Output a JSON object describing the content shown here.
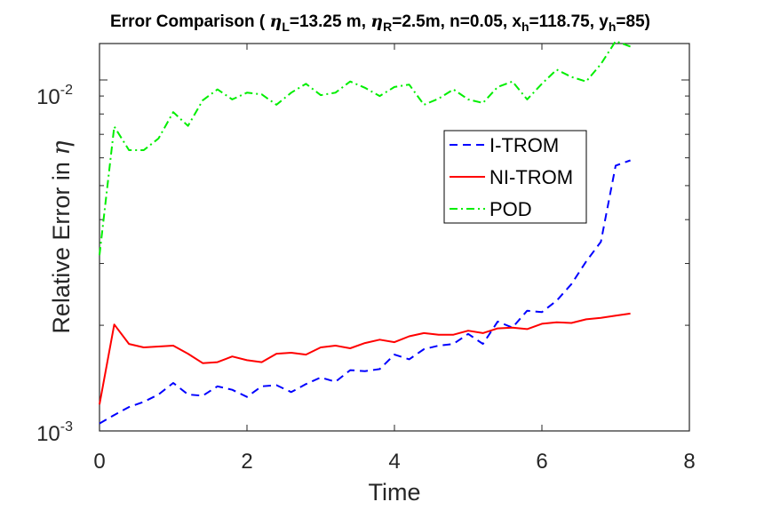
{
  "chart_data": {
    "type": "line",
    "title": {
      "prefix": "Error Comparison ( ",
      "etaL_sub": "L",
      "etaL_val": "=13.25 m, ",
      "etaR_sub": "R",
      "etaR_val": "=2.5m, n=0.05, x",
      "xh_sub": "h",
      "xh_val": "=118.75, y",
      "yh_sub": "h",
      "yh_val": "=85)",
      "eta_symbol": "η"
    },
    "xlabel": "Time",
    "ylabel": "Relative Error in",
    "ylabel_symbol": "η",
    "xlim": [
      0,
      8
    ],
    "ylim": [
      0.001,
      0.0127
    ],
    "yscale": "log",
    "xticks": [
      "0",
      "2",
      "4",
      "6",
      "8"
    ],
    "xtick_values": [
      0,
      2,
      4,
      6,
      8
    ],
    "yticks": [
      {
        "value": 0.01,
        "base": "10",
        "exp": "-2"
      },
      {
        "value": 0.001,
        "base": "10",
        "exp": "-3"
      }
    ],
    "x": [
      0,
      0.2,
      0.4,
      0.6,
      0.8,
      1.0,
      1.2,
      1.4,
      1.6,
      1.8,
      2.0,
      2.2,
      2.4,
      2.6,
      2.8,
      3.0,
      3.2,
      3.4,
      3.6,
      3.8,
      4.0,
      4.2,
      4.4,
      4.6,
      4.8,
      5.0,
      5.2,
      5.4,
      5.6,
      5.8,
      6.0,
      6.2,
      6.4,
      6.6,
      6.8,
      7.0,
      7.2
    ],
    "series": [
      {
        "name": "I-TROM",
        "color": "#0000ff",
        "style": "dashed",
        "values": [
          0.00105,
          0.00111,
          0.00117,
          0.00121,
          0.00127,
          0.00137,
          0.00127,
          0.00126,
          0.00134,
          0.00131,
          0.00125,
          0.00134,
          0.00135,
          0.00129,
          0.00136,
          0.00142,
          0.00138,
          0.00149,
          0.00148,
          0.0015,
          0.00165,
          0.0016,
          0.00171,
          0.00175,
          0.00177,
          0.00189,
          0.00177,
          0.00205,
          0.00197,
          0.0022,
          0.00218,
          0.00235,
          0.00262,
          0.00304,
          0.00346,
          0.0057,
          0.0059
        ]
      },
      {
        "name": "NI-TROM",
        "color": "#ff0000",
        "style": "solid",
        "values": [
          0.00119,
          0.00201,
          0.00177,
          0.00173,
          0.00174,
          0.00175,
          0.00166,
          0.00156,
          0.00157,
          0.00163,
          0.00159,
          0.00157,
          0.00166,
          0.00167,
          0.00165,
          0.00173,
          0.00175,
          0.00172,
          0.00178,
          0.00182,
          0.00179,
          0.00186,
          0.0019,
          0.00188,
          0.00188,
          0.00193,
          0.0019,
          0.00196,
          0.00197,
          0.00195,
          0.00202,
          0.00204,
          0.00203,
          0.00208,
          0.0021,
          0.00213,
          0.00216
        ]
      },
      {
        "name": "POD",
        "color": "#00ee00",
        "style": "dash-dot",
        "values": [
          0.00317,
          0.00737,
          0.00631,
          0.00631,
          0.00681,
          0.0081,
          0.0074,
          0.00875,
          0.0094,
          0.0088,
          0.0092,
          0.0091,
          0.0085,
          0.0092,
          0.00975,
          0.00905,
          0.0092,
          0.0099,
          0.0095,
          0.009,
          0.00955,
          0.0097,
          0.0085,
          0.00885,
          0.0094,
          0.0088,
          0.0086,
          0.00955,
          0.0099,
          0.0088,
          0.00975,
          0.0107,
          0.0102,
          0.0099,
          0.0111,
          0.0129,
          0.01245
        ]
      }
    ],
    "legend_position": "top-right (inside)"
  }
}
